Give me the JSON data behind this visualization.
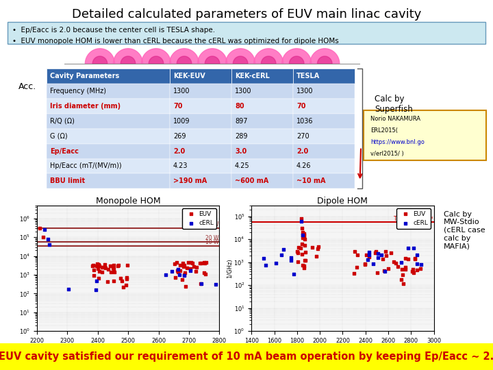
{
  "title": "Detailed calculated parameters of EUV main linac cavity",
  "title_fontsize": 13,
  "bullets": [
    "Ep/Eacc is 2.0 because the center cell is TESLA shape.",
    "EUV monopole HOM is lower than cERL because the cERL was optimized for dipole HOMs"
  ],
  "bullet_box_color": "#cce8f0",
  "bullet_box_edge": "#6699bb",
  "acc_label": "Acc.",
  "table_header": [
    "Cavity Parameters",
    "KEK-EUV",
    "KEK-cERL",
    "TESLA"
  ],
  "table_rows": [
    [
      "Frequency (MHz)",
      "1300",
      "1300",
      "1300"
    ],
    [
      "Iris diameter (mm)",
      "70",
      "80",
      "70"
    ],
    [
      "R/Q (Ω)",
      "1009",
      "897",
      "1036"
    ],
    [
      "G (Ω)",
      "269",
      "289",
      "270"
    ],
    [
      "Ep/Eacc",
      "2.0",
      "3.0",
      "2.0"
    ],
    [
      "Hp/Eacc (mT/(MV/m))",
      "4.23",
      "4.25",
      "4.26"
    ],
    [
      "BBU limit",
      ">190 mA",
      "~600 mA",
      "~10 mA"
    ]
  ],
  "red_rows": [
    1,
    4,
    6
  ],
  "header_bg": "#3366aa",
  "header_fg": "#ffffff",
  "row_bg_even": "#c8d8f0",
  "row_bg_odd": "#dce8f8",
  "superfish_text": "Calc by\nSuperfish",
  "ref_box_text": "Norio NAKAMURA\nERL2015(\nhttps://www.bnl.go\nv/erl2015/ )",
  "ref_box_color": "#ffffd0",
  "ref_box_edge": "#cc8800",
  "monopole_title": "Monopole HOM",
  "dipole_title": "Dipole HOM",
  "calc_mw_text": "Calc by\nMW-Stdio\n(cERL case\ncalc by\nMAFIA)",
  "footer_text": "EUV cavity satisfied our requirement of 10 mA beam operation by keeping Ep/Eacc ∼ 2.",
  "footer_bg": "#ffff00",
  "footer_fg": "#cc0000",
  "footer_fontsize": 10.5
}
